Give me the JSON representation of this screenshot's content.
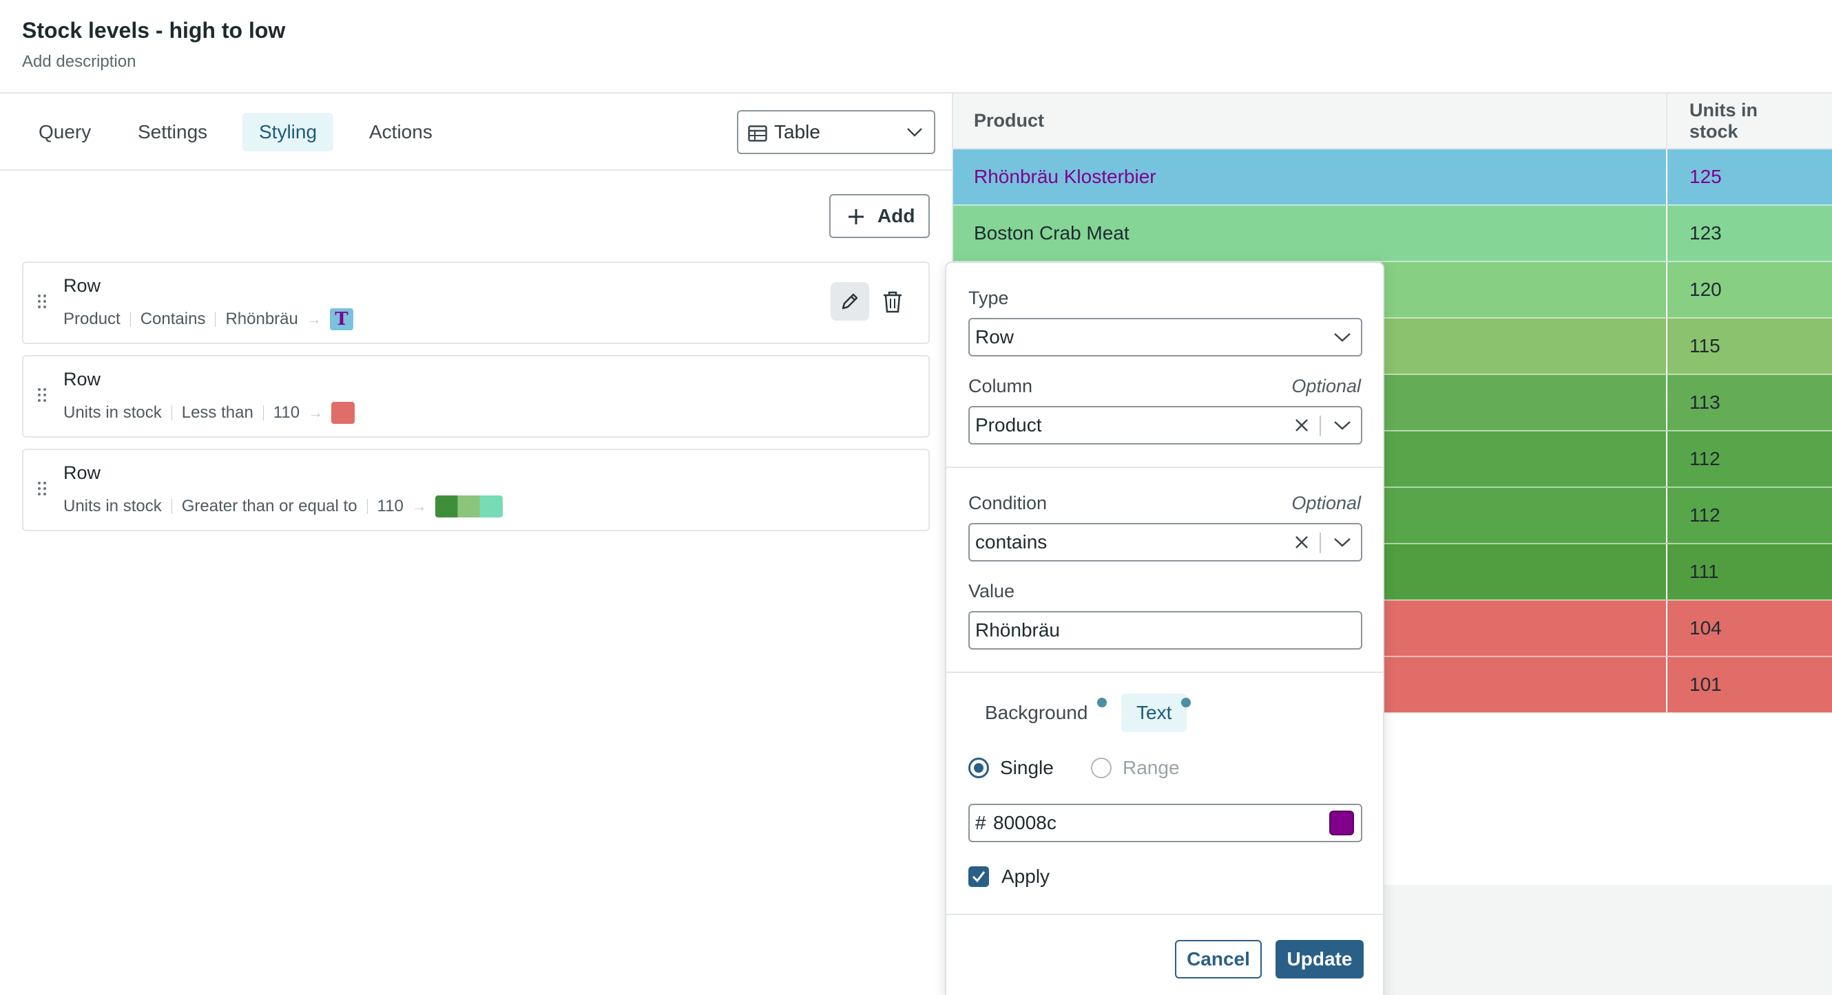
{
  "header": {
    "title": "Stock levels - high to low",
    "description": "Add description"
  },
  "editor": {
    "tabs": [
      {
        "label": "Query",
        "active": false
      },
      {
        "label": "Settings",
        "active": false
      },
      {
        "label": "Styling",
        "active": true
      },
      {
        "label": "Actions",
        "active": false
      }
    ],
    "viz_type": {
      "label": "Table",
      "icon": "table-icon"
    },
    "add_label": "Add",
    "rules": [
      {
        "title": "Row",
        "column": "Product",
        "condition": "Contains",
        "value": "Rhönbräu",
        "style": "text",
        "text_swatch": "T",
        "colors": [
          "#7ac2dd"
        ]
      },
      {
        "title": "Row",
        "column": "Units in stock",
        "condition": "Less than",
        "value": "110",
        "style": "single",
        "colors": [
          "#e06d68"
        ]
      },
      {
        "title": "Row",
        "column": "Units in stock",
        "condition": "Greater than or equal to",
        "value": "110",
        "style": "range",
        "colors": [
          "#3f8f3a",
          "#8dc47c",
          "#75dcb6"
        ]
      }
    ]
  },
  "table": {
    "columns": [
      "Product",
      "Units in stock"
    ],
    "rows": [
      {
        "product": "Rhönbräu Klosterbier",
        "units": "125",
        "bg": "#76c3de",
        "text_color": "#80008c"
      },
      {
        "product": "Boston Crab Meat",
        "units": "123",
        "bg": "#85d596",
        "text_color": "#1f2a2e"
      },
      {
        "product": "",
        "units": "120",
        "bg": "#86cf83",
        "text_color": "#1f2a2e"
      },
      {
        "product": "",
        "units": "115",
        "bg": "#8bc26d",
        "text_color": "#1f2a2e"
      },
      {
        "product": "",
        "units": "113",
        "bg": "#64ad55",
        "text_color": "#1f2a2e"
      },
      {
        "product": "",
        "units": "112",
        "bg": "#58a64a",
        "text_color": "#1f2a2e"
      },
      {
        "product": "",
        "units": "112",
        "bg": "#58a64a",
        "text_color": "#1f2a2e"
      },
      {
        "product": "",
        "units": "111",
        "bg": "#509e40",
        "text_color": "#1f2a2e"
      },
      {
        "product": "",
        "units": "104",
        "bg": "#e06d68",
        "text_color": "#1f2a2e"
      },
      {
        "product": "",
        "units": "101",
        "bg": "#e06d68",
        "text_color": "#1f2a2e"
      }
    ]
  },
  "popover": {
    "type_label": "Type",
    "type_value": "Row",
    "column_label": "Column",
    "column_optional": "Optional",
    "column_value": "Product",
    "condition_label": "Condition",
    "condition_optional": "Optional",
    "condition_value": "contains",
    "value_label": "Value",
    "value_value": "Rhönbräu",
    "color_tabs": [
      {
        "label": "Background",
        "active": false
      },
      {
        "label": "Text",
        "active": true
      }
    ],
    "mode_single": "Single",
    "mode_range": "Range",
    "mode_selected": "Single",
    "hex_prefix": "#",
    "hex_value": "80008c",
    "hex_color": "#80008c",
    "apply_label": "Apply",
    "apply_checked": true,
    "cancel_label": "Cancel",
    "update_label": "Update"
  }
}
